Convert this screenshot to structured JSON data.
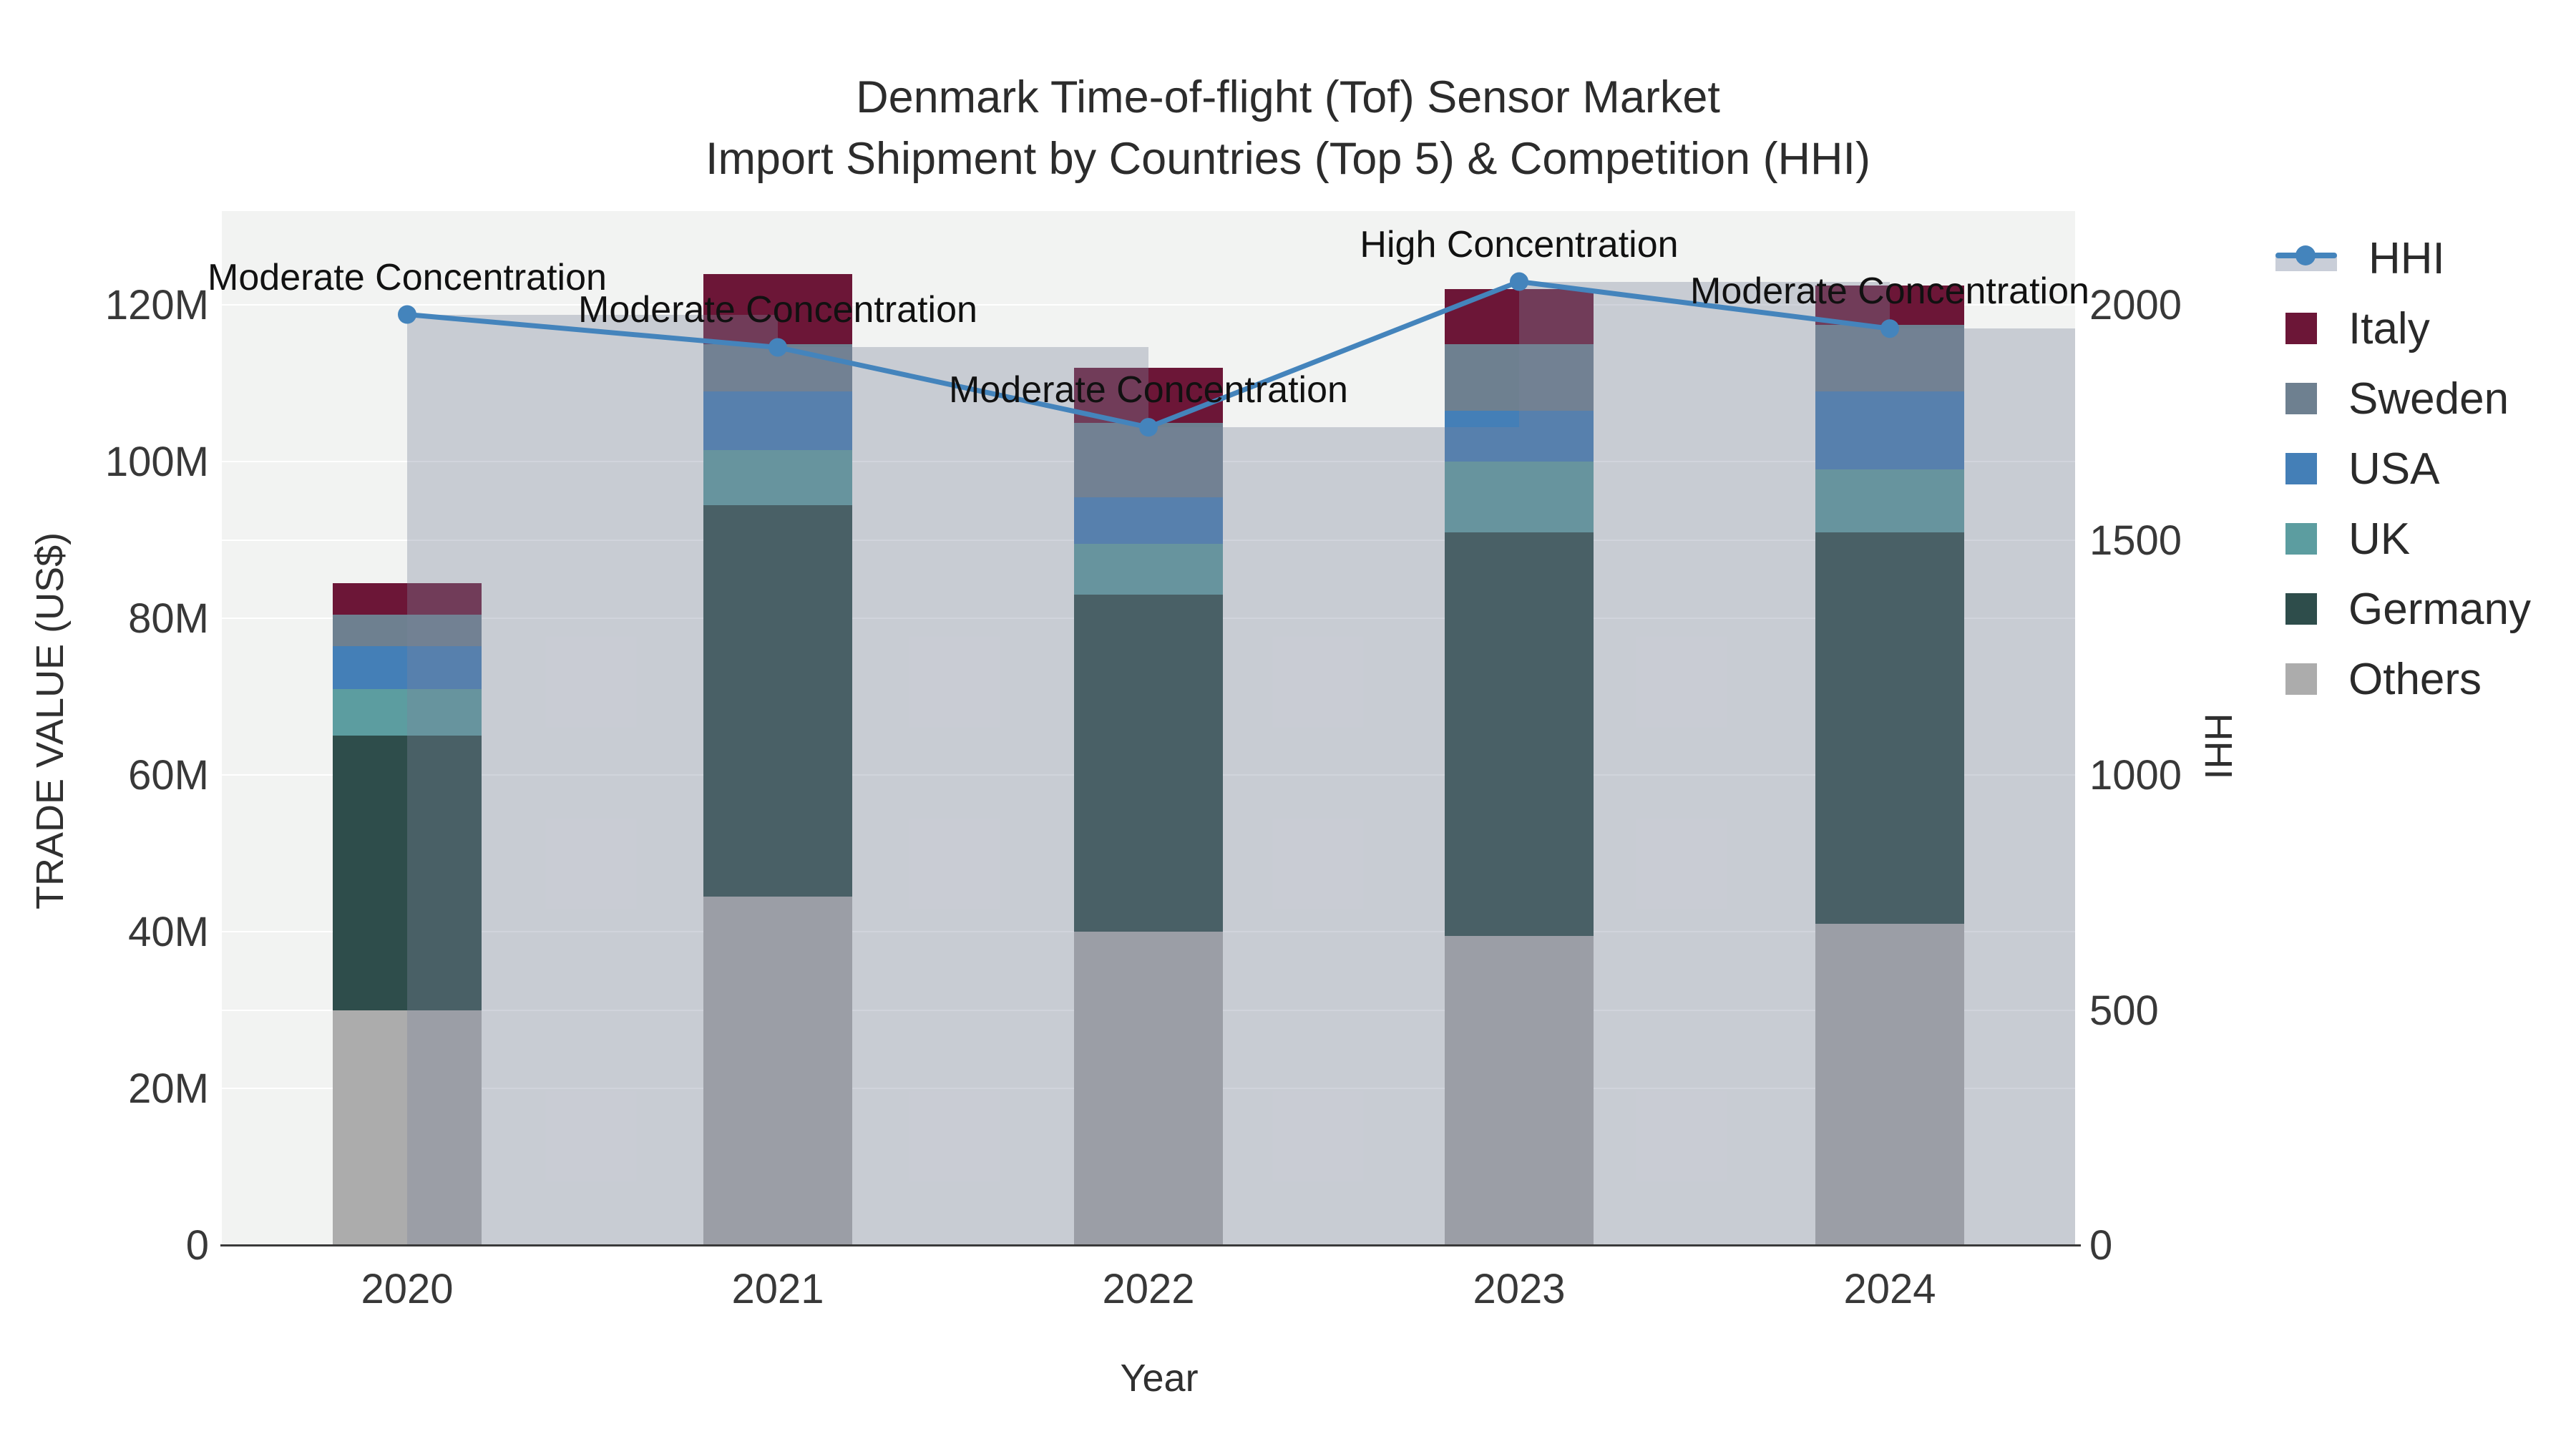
{
  "chart_data": {
    "type": "bar",
    "subtype": "stacked-bar-with-line-overlay",
    "title": "Denmark Time-of-flight (Tof) Sensor Market",
    "subtitle": "Import Shipment by Countries (Top 5) & Competition (HHI)",
    "categories": [
      "2020",
      "2021",
      "2022",
      "2023",
      "2024"
    ],
    "series": [
      {
        "name": "Others",
        "color": "#ACACAC",
        "values": [
          30,
          44.5,
          40,
          39.5,
          41
        ]
      },
      {
        "name": "Germany",
        "color": "#2E4D4B",
        "values": [
          35,
          50,
          43,
          51.5,
          50
        ]
      },
      {
        "name": "UK",
        "color": "#5C9DA0",
        "values": [
          6,
          7,
          6.5,
          9,
          8
        ]
      },
      {
        "name": "USA",
        "color": "#447FB7",
        "values": [
          5.5,
          7.5,
          6,
          6.5,
          10
        ]
      },
      {
        "name": "Sweden",
        "color": "#6E8090",
        "values": [
          4,
          6,
          9.5,
          8.5,
          8.5
        ]
      },
      {
        "name": "Italy",
        "color": "#6C1637",
        "values": [
          4,
          9,
          7,
          7,
          5
        ]
      }
    ],
    "totals_musd": [
      84.5,
      124,
      112,
      122,
      122.5
    ],
    "hhi": {
      "name": "HHI",
      "line_color": "#4484BC",
      "bar_fill": "rgba(124,132,155,0.35)",
      "values": [
        1980,
        1910,
        1740,
        2050,
        1950
      ],
      "annotations": [
        "Moderate Concentration",
        "Moderate Concentration",
        "Moderate Concentration",
        "High Concentration",
        "Moderate Concentration"
      ]
    },
    "axes": {
      "left": {
        "label": "TRADE VALUE (US$)",
        "ticks": [
          "0",
          "20M",
          "40M",
          "60M",
          "80M",
          "100M",
          "120M"
        ],
        "tick_values": [
          0,
          20,
          40,
          60,
          80,
          100,
          120
        ],
        "range": [
          0,
          132
        ],
        "units": "M US$"
      },
      "right": {
        "label": "HHI",
        "ticks": [
          "0",
          "500",
          "1000",
          "1500",
          "2000"
        ],
        "tick_values": [
          0,
          500,
          1000,
          1500,
          2000
        ],
        "range": [
          0,
          2200
        ]
      },
      "x": {
        "label": "Year"
      }
    },
    "legend": [
      "HHI",
      "Italy",
      "Sweden",
      "USA",
      "UK",
      "Germany",
      "Others"
    ],
    "layout_hints": {
      "grid": "on",
      "legend_position": "right",
      "plot_bg": "#F2F3F2"
    }
  }
}
